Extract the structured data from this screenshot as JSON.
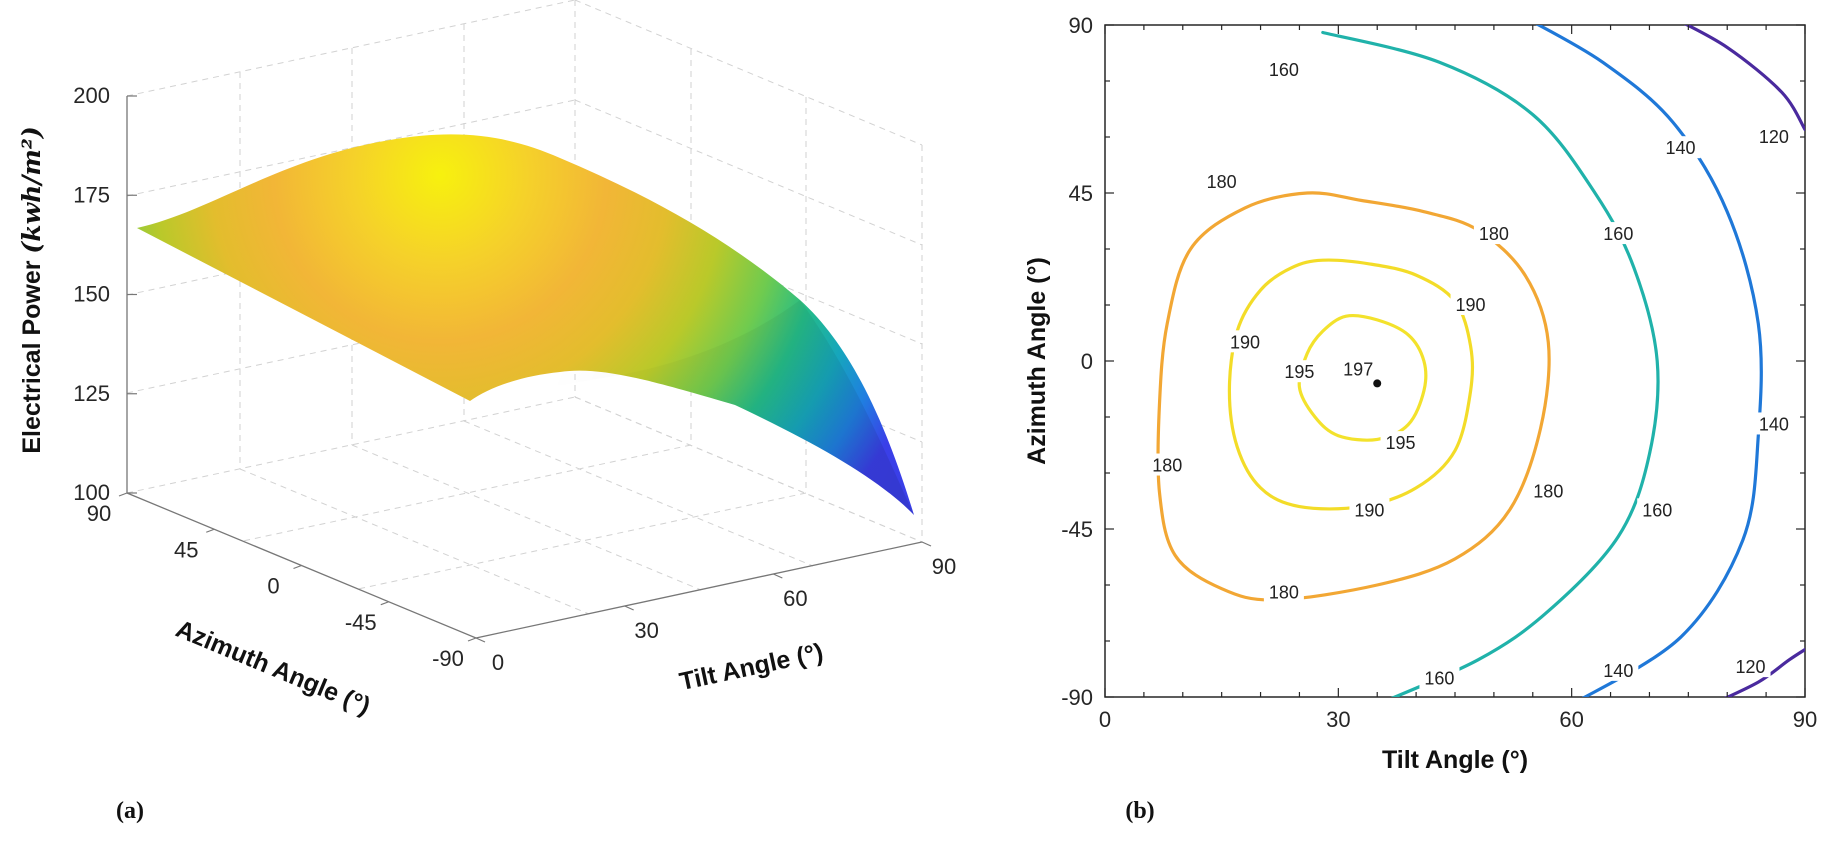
{
  "panels": {
    "a_label": "(a)",
    "b_label": "(b)"
  },
  "chart_data": [
    {
      "type": "surface",
      "panel": "(a)",
      "xlabel": "Tilt Angle (°)",
      "ylabel": "Azimuth Angle (°)",
      "zlabel": "Electrical Power (kwh/m²)",
      "x_ticks": [
        "0",
        "30",
        "60",
        "90"
      ],
      "y_ticks": [
        "90",
        "45",
        "0",
        "-45",
        "-90"
      ],
      "z_ticks": [
        "100",
        "125",
        "150",
        "175",
        "200"
      ],
      "xlim": [
        0,
        90
      ],
      "ylim": [
        -90,
        90
      ],
      "zlim": [
        100,
        200
      ],
      "grid": true,
      "colormap": "parula",
      "peak": {
        "tilt": 35,
        "azimuth": -6,
        "power": 197
      },
      "corner_values": [
        {
          "tilt": 0,
          "azimuth": 90,
          "power": 167
        },
        {
          "tilt": 0,
          "azimuth": -90,
          "power": 167
        },
        {
          "tilt": 90,
          "azimuth": 90,
          "power": 108
        },
        {
          "tilt": 90,
          "azimuth": -90,
          "power": 108
        }
      ]
    },
    {
      "type": "contour",
      "panel": "(b)",
      "xlabel": "Tilt Angle (°)",
      "ylabel": "Azimuth Angle (°)",
      "x_ticks": [
        "0",
        "30",
        "60",
        "90"
      ],
      "y_ticks": [
        "90",
        "45",
        "0",
        "-45",
        "-90"
      ],
      "xlim": [
        0,
        90
      ],
      "ylim": [
        -90,
        90
      ],
      "grid": false,
      "levels": [
        120,
        140,
        160,
        180,
        190,
        195
      ],
      "level_colors": {
        "120": "#4a2a9e",
        "140": "#1f78d8",
        "160": "#20b2aa",
        "180": "#f2a734",
        "190": "#f3dc28",
        "195": "#f3e22c"
      },
      "peak": {
        "tilt": 35,
        "azimuth": -6,
        "label": "197"
      },
      "contour_labels": [
        {
          "level": "160",
          "tilt": 23,
          "azimuth": 78
        },
        {
          "level": "160",
          "tilt": 66,
          "azimuth": 34
        },
        {
          "level": "160",
          "tilt": 71,
          "azimuth": -40
        },
        {
          "level": "160",
          "tilt": 43,
          "azimuth": -85
        },
        {
          "level": "140",
          "tilt": 74,
          "azimuth": 57
        },
        {
          "level": "140",
          "tilt": 86,
          "azimuth": -17
        },
        {
          "level": "140",
          "tilt": 66,
          "azimuth": -83
        },
        {
          "level": "120",
          "tilt": 86,
          "azimuth": 60
        },
        {
          "level": "120",
          "tilt": 83,
          "azimuth": -82
        },
        {
          "level": "180",
          "tilt": 15,
          "azimuth": 48
        },
        {
          "level": "180",
          "tilt": 50,
          "azimuth": 34
        },
        {
          "level": "180",
          "tilt": 57,
          "azimuth": -35
        },
        {
          "level": "180",
          "tilt": 8,
          "azimuth": -28
        },
        {
          "level": "180",
          "tilt": 23,
          "azimuth": -62
        },
        {
          "level": "190",
          "tilt": 47,
          "azimuth": 15
        },
        {
          "level": "190",
          "tilt": 18,
          "azimuth": 5
        },
        {
          "level": "190",
          "tilt": 34,
          "azimuth": -40
        },
        {
          "level": "195",
          "tilt": 25,
          "azimuth": -3
        },
        {
          "level": "195",
          "tilt": 38,
          "azimuth": -22
        }
      ]
    }
  ]
}
